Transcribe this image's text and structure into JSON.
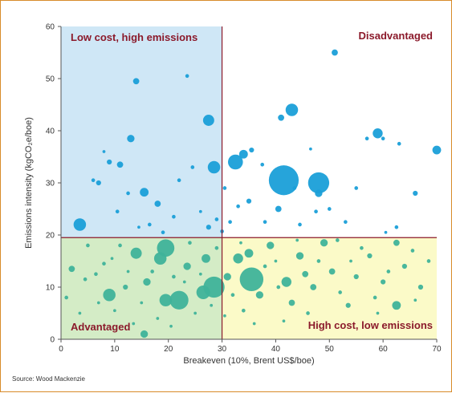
{
  "chart_data": {
    "type": "scatter",
    "xlabel": "Breakeven (10%, Brent US$/boe)",
    "ylabel": "Emissions intensity (kgCO₂e/boe)",
    "xlim": [
      0,
      70
    ],
    "ylim": [
      0,
      60
    ],
    "xticks": [
      0,
      10,
      20,
      30,
      40,
      50,
      60,
      70
    ],
    "yticks": [
      0,
      10,
      20,
      30,
      40,
      50,
      60
    ],
    "grid": false,
    "threshold_x": 30,
    "threshold_y": 19.5,
    "quadrants": [
      {
        "label": "Low cost, high emissions",
        "fill": "#cfe7f6",
        "x": [
          0,
          30
        ],
        "y": [
          19.5,
          60
        ],
        "label_pos": "top-left"
      },
      {
        "label": "Disadvantaged",
        "fill": "#ffffff",
        "x": [
          30,
          70
        ],
        "y": [
          19.5,
          60
        ],
        "label_pos": "top-right"
      },
      {
        "label": "Advantaged",
        "fill": "#d4ecc6",
        "x": [
          0,
          30
        ],
        "y": [
          0,
          19.5
        ],
        "label_pos": "bottom-left"
      },
      {
        "label": "High cost, low emissions",
        "fill": "#fbfac8",
        "x": [
          30,
          70
        ],
        "y": [
          0,
          19.5
        ],
        "label_pos": "bottom-right"
      }
    ],
    "colors": {
      "high_emissions": "#1a9fd8",
      "low_emissions": "#3fb39a",
      "threshold_line": "#8b1a2b"
    },
    "series": [
      {
        "points": [
          [
            3.5,
            22,
            5
          ],
          [
            9,
            34,
            2
          ],
          [
            11,
            33.5,
            2.5
          ],
          [
            13,
            38.5,
            3
          ],
          [
            14,
            49.5,
            2.5
          ],
          [
            15.5,
            28.2,
            3.5
          ],
          [
            18,
            26,
            2.5
          ],
          [
            23.5,
            50.5,
            1.5
          ],
          [
            27.5,
            42,
            4.5
          ],
          [
            28.5,
            33,
            5
          ],
          [
            32.5,
            34,
            6
          ],
          [
            34,
            35.5,
            3.5
          ],
          [
            35.5,
            36.3,
            2
          ],
          [
            41,
            42.5,
            2.5
          ],
          [
            41.5,
            30.5,
            12
          ],
          [
            43,
            44,
            5
          ],
          [
            48,
            30,
            8.5
          ],
          [
            48,
            28,
            3
          ],
          [
            51,
            55,
            2.5
          ],
          [
            59,
            39.5,
            4
          ],
          [
            60,
            38.5,
            1.5
          ],
          [
            66,
            28,
            2
          ],
          [
            70,
            36.3,
            3.5
          ],
          [
            7,
            30,
            2
          ],
          [
            6,
            30.5,
            1.5
          ],
          [
            12.5,
            28,
            1.5
          ],
          [
            21,
            23.5,
            1.5
          ],
          [
            27.5,
            21.5,
            2
          ],
          [
            29,
            23,
            1.5
          ],
          [
            35,
            26.5,
            2
          ],
          [
            37.5,
            33.5,
            1.5
          ],
          [
            40.5,
            25,
            2.5
          ],
          [
            44.5,
            22,
            1.5
          ],
          [
            53,
            22.5,
            1.5
          ],
          [
            57,
            38.5,
            1.5
          ],
          [
            63,
            37.5,
            1.5
          ],
          [
            62.5,
            21.5,
            1.5
          ],
          [
            22,
            30.5,
            1.5
          ],
          [
            24.5,
            33,
            1.5
          ],
          [
            30.5,
            29,
            1.5
          ],
          [
            31.5,
            22.5,
            1.5
          ],
          [
            33,
            25.5,
            1.5
          ],
          [
            38,
            22.5,
            1.5
          ],
          [
            43.5,
            29,
            1.5
          ],
          [
            47.5,
            24.5,
            1.5
          ],
          [
            50,
            25,
            1.5
          ],
          [
            55,
            29,
            1.5
          ],
          [
            10.5,
            24.5,
            1.5
          ],
          [
            16.5,
            22,
            1.5
          ],
          [
            19,
            20.5,
            1.5
          ],
          [
            8,
            36,
            1.2
          ],
          [
            60.5,
            20.5,
            1.2
          ],
          [
            46.5,
            36.5,
            1.2
          ],
          [
            30,
            20.7,
            1.5
          ],
          [
            26,
            24.5,
            1.2
          ],
          [
            14.5,
            21.5,
            1.2
          ]
        ]
      },
      {
        "points": [
          [
            19.5,
            17.5,
            7
          ],
          [
            28.5,
            10,
            8.5
          ],
          [
            35.5,
            11.5,
            9.5
          ],
          [
            22,
            7.5,
            7.5
          ],
          [
            26.5,
            9,
            5.5
          ],
          [
            19.5,
            7.5,
            5
          ],
          [
            9,
            8.5,
            5
          ],
          [
            15.5,
            1,
            3
          ],
          [
            6.5,
            12.5,
            1.5
          ],
          [
            2,
            13.5,
            2.5
          ],
          [
            4.5,
            11.5,
            1.5
          ],
          [
            8,
            14.5,
            1.5
          ],
          [
            12,
            10,
            2
          ],
          [
            14,
            16.5,
            4.5
          ],
          [
            16,
            11,
            3
          ],
          [
            18.5,
            15.5,
            5
          ],
          [
            23.5,
            14,
            3
          ],
          [
            27,
            15.5,
            3.5
          ],
          [
            31,
            12,
            3
          ],
          [
            33,
            15.5,
            4
          ],
          [
            35,
            16.5,
            3.5
          ],
          [
            37,
            8.5,
            3
          ],
          [
            39,
            18,
            3
          ],
          [
            42,
            11,
            4
          ],
          [
            43,
            7,
            2.5
          ],
          [
            44.5,
            16,
            3
          ],
          [
            45.5,
            12.5,
            2.5
          ],
          [
            47,
            10,
            2.5
          ],
          [
            49,
            18.5,
            3
          ],
          [
            50.5,
            13,
            2.5
          ],
          [
            53.5,
            6.5,
            2
          ],
          [
            55,
            12,
            2
          ],
          [
            57.5,
            16,
            2
          ],
          [
            60,
            11,
            2
          ],
          [
            62.5,
            6.5,
            3.5
          ],
          [
            62.5,
            18.5,
            2.5
          ],
          [
            64,
            14,
            2
          ],
          [
            67,
            10,
            2
          ],
          [
            1,
            8,
            1.5
          ],
          [
            5,
            18,
            1.5
          ],
          [
            11,
            18,
            1.5
          ],
          [
            17,
            13,
            1.5
          ],
          [
            21,
            12,
            1.5
          ],
          [
            24,
            18.5,
            1.5
          ],
          [
            29,
            17.5,
            1.5
          ],
          [
            32,
            8.5,
            1.5
          ],
          [
            34,
            5.5,
            1.5
          ],
          [
            38,
            14,
            1.5
          ],
          [
            40.5,
            10,
            1.5
          ],
          [
            46,
            5,
            1.5
          ],
          [
            48,
            15,
            1.5
          ],
          [
            51.5,
            19,
            1.5
          ],
          [
            52,
            9,
            1.5
          ],
          [
            56,
            17.5,
            1.5
          ],
          [
            58.5,
            8,
            1.5
          ],
          [
            61,
            13,
            1.5
          ],
          [
            65.5,
            17,
            1.5
          ],
          [
            68.5,
            15,
            1.5
          ],
          [
            3.5,
            5,
            1.2
          ],
          [
            10,
            5.5,
            1.2
          ],
          [
            13.5,
            3,
            1.2
          ],
          [
            18,
            4,
            1.2
          ],
          [
            25,
            5,
            1.2
          ],
          [
            30.5,
            4.5,
            1.2
          ],
          [
            36,
            3,
            1.2
          ],
          [
            41.5,
            3.5,
            1.2
          ],
          [
            9.5,
            15.5,
            1.2
          ],
          [
            12.5,
            13,
            1.2
          ],
          [
            15,
            7,
            1.2
          ],
          [
            23,
            11,
            1.2
          ],
          [
            26,
            12.5,
            1.2
          ],
          [
            28,
            6.5,
            1.2
          ],
          [
            33.5,
            18.5,
            1.2
          ],
          [
            40,
            15,
            1.2
          ],
          [
            44,
            19,
            1.2
          ],
          [
            54,
            15,
            1.2
          ],
          [
            59,
            5,
            1.2
          ],
          [
            66,
            7.5,
            1.2
          ],
          [
            20.5,
            2.5,
            1.2
          ],
          [
            7,
            7,
            1.2
          ]
        ]
      }
    ]
  },
  "source": "Source: Wood Mackenzie"
}
